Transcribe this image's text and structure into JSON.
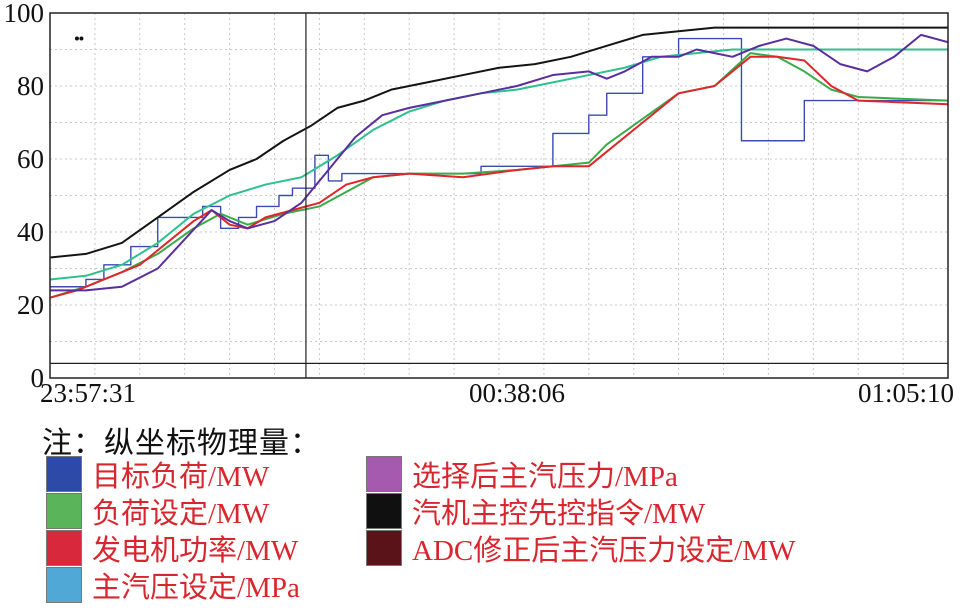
{
  "chart_data": {
    "type": "line",
    "xlabel": "",
    "ylabel": "",
    "ylim": [
      0,
      100
    ],
    "yticks": [
      0,
      20,
      40,
      60,
      80,
      100
    ],
    "y_tick_labels": [
      "0",
      "20",
      "40",
      "60",
      "80",
      "100"
    ],
    "x_tick_labels": [
      "23:57:31",
      "00:38:06",
      "01:05:10"
    ],
    "grid": true,
    "series": [
      {
        "name": "目标负荷/MW",
        "color": "#3a4bb0",
        "step": true,
        "x": [
          0,
          0.04,
          0.06,
          0.09,
          0.12,
          0.15,
          0.17,
          0.19,
          0.21,
          0.23,
          0.255,
          0.27,
          0.295,
          0.31,
          0.325,
          0.36,
          0.395,
          0.44,
          0.48,
          0.52,
          0.56,
          0.6,
          0.62,
          0.64,
          0.66,
          0.7,
          0.74,
          0.77,
          0.8,
          0.84,
          0.88,
          1.0
        ],
        "values": [
          25,
          27,
          31,
          36,
          44,
          44,
          47,
          41,
          44,
          47,
          50,
          52,
          61,
          54,
          56,
          56,
          56,
          56,
          58,
          58,
          67,
          72,
          78,
          78,
          88,
          93,
          93,
          65,
          65,
          76,
          76,
          76
        ]
      },
      {
        "name": "负荷设定/MW",
        "color": "#3aaa4a",
        "x": [
          0,
          0.04,
          0.08,
          0.12,
          0.16,
          0.19,
          0.22,
          0.26,
          0.3,
          0.33,
          0.36,
          0.4,
          0.46,
          0.52,
          0.56,
          0.6,
          0.62,
          0.66,
          0.7,
          0.74,
          0.78,
          0.81,
          0.84,
          0.87,
          0.9,
          1.0
        ],
        "values": [
          22,
          25,
          29,
          34,
          41,
          45,
          42,
          45,
          47,
          51,
          55,
          56,
          56,
          57,
          58,
          59,
          64,
          71,
          78,
          80,
          89,
          88,
          84,
          79,
          77,
          76
        ]
      },
      {
        "name": "发电机功率/MW",
        "color": "#e0262a",
        "x": [
          0,
          0.03,
          0.06,
          0.1,
          0.13,
          0.16,
          0.18,
          0.2,
          0.22,
          0.24,
          0.27,
          0.3,
          0.33,
          0.36,
          0.4,
          0.46,
          0.52,
          0.56,
          0.6,
          0.62,
          0.66,
          0.7,
          0.74,
          0.78,
          0.81,
          0.84,
          0.87,
          0.9,
          1.0
        ],
        "values": [
          22,
          24,
          27,
          31,
          37,
          43,
          46,
          42,
          41,
          44,
          46,
          48,
          53,
          55,
          56,
          55,
          57,
          58,
          58,
          62,
          70,
          78,
          80,
          88,
          88,
          87,
          80,
          76,
          75
        ]
      },
      {
        "name": "主汽压设定/MPa",
        "color": "#2ec08e",
        "x": [
          0,
          0.04,
          0.08,
          0.12,
          0.16,
          0.2,
          0.24,
          0.28,
          0.32,
          0.36,
          0.4,
          0.44,
          0.48,
          0.52,
          0.56,
          0.6,
          0.64,
          0.68,
          0.72,
          0.76,
          0.8,
          0.84,
          1.0
        ],
        "values": [
          27,
          28,
          31,
          37,
          45,
          50,
          53,
          55,
          61,
          68,
          73,
          76,
          78,
          79,
          81,
          83,
          85,
          88,
          89,
          90,
          90,
          90,
          90
        ]
      },
      {
        "name": "选择后主汽压力/MPa",
        "color": "#5a2e9e",
        "x": [
          0,
          0.04,
          0.08,
          0.12,
          0.15,
          0.18,
          0.2,
          0.22,
          0.25,
          0.28,
          0.31,
          0.34,
          0.37,
          0.4,
          0.44,
          0.48,
          0.52,
          0.56,
          0.6,
          0.62,
          0.64,
          0.67,
          0.7,
          0.72,
          0.74,
          0.76,
          0.79,
          0.82,
          0.85,
          0.88,
          0.91,
          0.94,
          0.97,
          1.0
        ],
        "values": [
          24,
          24,
          25,
          30,
          38,
          46,
          43,
          41,
          43,
          48,
          57,
          66,
          72,
          74,
          76,
          78,
          80,
          83,
          84,
          82,
          84,
          88,
          88,
          90,
          89,
          88,
          91,
          93,
          91,
          86,
          84,
          88,
          94,
          92
        ]
      },
      {
        "name": "汽机主控先控指令/MW",
        "color": "#141414",
        "x": [
          0,
          0.04,
          0.08,
          0.12,
          0.16,
          0.2,
          0.23,
          0.26,
          0.29,
          0.32,
          0.35,
          0.38,
          0.42,
          0.46,
          0.5,
          0.54,
          0.58,
          0.62,
          0.66,
          0.7,
          0.74,
          0.78,
          1.0
        ],
        "values": [
          33,
          34,
          37,
          44,
          51,
          57,
          60,
          65,
          69,
          74,
          76,
          79,
          81,
          83,
          85,
          86,
          88,
          91,
          94,
          95,
          96,
          96,
          96
        ]
      },
      {
        "name": "ADC修正后主汽压力设定/MW",
        "color": "#4a1418",
        "x": [
          0,
          1.0
        ],
        "values": [
          null,
          null
        ]
      }
    ],
    "legend": {
      "placement": "below",
      "swatches": [
        {
          "name": "目标负荷/MW",
          "color": "#2d4aa8"
        },
        {
          "name": "选择后主汽压力/MPa",
          "color": "#a55ab0"
        },
        {
          "name": "负荷设定/MW",
          "color": "#5ab45a"
        },
        {
          "name": "汽机主控先控指令/MW",
          "color": "#101010"
        },
        {
          "name": "发电机功率/MW",
          "color": "#d8283c"
        },
        {
          "name": "ADC修正后主汽压力设定/MW",
          "color": "#5a1419"
        },
        {
          "name": "主汽压设定/MPa",
          "color": "#4fa8d6"
        }
      ]
    },
    "annotations": {
      "horizontal_line_value": 4,
      "vertical_cursor_x": 0.285
    }
  },
  "note": "注：纵坐标物理量："
}
